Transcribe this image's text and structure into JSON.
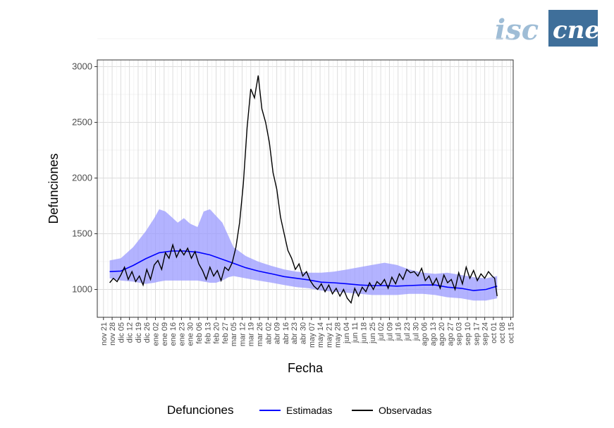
{
  "logo": {
    "left_text": "isc",
    "right_text": "cne",
    "accent_color": "#3f6f9a",
    "light_color": "#9fbdd6"
  },
  "chart_data": {
    "type": "line",
    "title": "",
    "xlabel": "Fecha",
    "ylabel": "Defunciones",
    "ylim": [
      750,
      3060
    ],
    "y_ticks": [
      1000,
      1500,
      2000,
      2500,
      3000
    ],
    "x_range": [
      "2019-11-16",
      "2020-10-17"
    ],
    "x_tick_dates": [
      "2019-11-21",
      "2019-11-28",
      "2019-12-05",
      "2019-12-12",
      "2019-12-19",
      "2019-12-26",
      "2020-01-02",
      "2020-01-09",
      "2020-01-16",
      "2020-01-23",
      "2020-01-30",
      "2020-02-06",
      "2020-02-13",
      "2020-02-20",
      "2020-02-27",
      "2020-03-05",
      "2020-03-12",
      "2020-03-19",
      "2020-03-26",
      "2020-04-02",
      "2020-04-09",
      "2020-04-16",
      "2020-04-23",
      "2020-04-30",
      "2020-05-07",
      "2020-05-14",
      "2020-05-21",
      "2020-05-28",
      "2020-06-04",
      "2020-06-11",
      "2020-06-18",
      "2020-06-25",
      "2020-07-02",
      "2020-07-09",
      "2020-07-16",
      "2020-07-23",
      "2020-07-30",
      "2020-08-06",
      "2020-08-13",
      "2020-08-20",
      "2020-08-27",
      "2020-09-03",
      "2020-09-10",
      "2020-09-17",
      "2020-09-24",
      "2020-10-01",
      "2020-10-08",
      "2020-10-15"
    ],
    "x_tick_labels": [
      "nov 21",
      "nov 28",
      "dic 05",
      "dic 12",
      "dic 19",
      "dic 26",
      "ene 02",
      "ene 09",
      "ene 16",
      "ene 23",
      "ene 30",
      "feb 06",
      "feb 13",
      "feb 20",
      "feb 27",
      "mar 05",
      "mar 12",
      "mar 19",
      "mar 26",
      "abr 02",
      "abr 09",
      "abr 16",
      "abr 23",
      "abr 30",
      "may 07",
      "may 14",
      "may 21",
      "may 28",
      "jun 04",
      "jun 11",
      "jun 18",
      "jun 25",
      "jul 02",
      "jul 09",
      "jul 16",
      "jul 23",
      "jul 30",
      "ago 06",
      "ago 13",
      "ago 20",
      "ago 27",
      "sep 03",
      "sep 10",
      "sep 17",
      "sep 24",
      "oct 01",
      "oct 08",
      "oct 15"
    ],
    "grid": true,
    "legend": {
      "title": "Defunciones",
      "position": "bottom"
    },
    "series": [
      {
        "name": "Estimadas",
        "color": "#0000ff",
        "x": [
          "2019-11-26",
          "2019-12-05",
          "2019-12-15",
          "2019-12-25",
          "2020-01-05",
          "2020-01-15",
          "2020-01-25",
          "2020-02-05",
          "2020-02-15",
          "2020-02-25",
          "2020-03-05",
          "2020-03-15",
          "2020-03-25",
          "2020-04-05",
          "2020-04-15",
          "2020-04-25",
          "2020-05-05",
          "2020-05-15",
          "2020-05-25",
          "2020-06-05",
          "2020-06-15",
          "2020-06-25",
          "2020-07-05",
          "2020-07-15",
          "2020-07-25",
          "2020-08-05",
          "2020-08-15",
          "2020-08-25",
          "2020-09-05",
          "2020-09-15",
          "2020-09-25",
          "2020-10-04"
        ],
        "values": [
          1160,
          1165,
          1215,
          1275,
          1330,
          1345,
          1345,
          1335,
          1310,
          1270,
          1235,
          1195,
          1165,
          1140,
          1115,
          1100,
          1085,
          1065,
          1060,
          1050,
          1040,
          1035,
          1035,
          1030,
          1035,
          1040,
          1040,
          1020,
          1010,
          990,
          1000,
          1030
        ]
      },
      {
        "name": "Observadas",
        "color": "#000000",
        "x": [
          "2019-11-26",
          "2019-11-29",
          "2019-12-02",
          "2019-12-05",
          "2019-12-08",
          "2019-12-11",
          "2019-12-14",
          "2019-12-17",
          "2019-12-20",
          "2019-12-23",
          "2019-12-26",
          "2019-12-29",
          "2020-01-01",
          "2020-01-04",
          "2020-01-07",
          "2020-01-10",
          "2020-01-13",
          "2020-01-16",
          "2020-01-19",
          "2020-01-22",
          "2020-01-25",
          "2020-01-28",
          "2020-01-31",
          "2020-02-03",
          "2020-02-06",
          "2020-02-09",
          "2020-02-12",
          "2020-02-15",
          "2020-02-18",
          "2020-02-21",
          "2020-02-24",
          "2020-02-27",
          "2020-03-01",
          "2020-03-04",
          "2020-03-07",
          "2020-03-10",
          "2020-03-13",
          "2020-03-16",
          "2020-03-19",
          "2020-03-22",
          "2020-03-25",
          "2020-03-28",
          "2020-03-31",
          "2020-04-03",
          "2020-04-06",
          "2020-04-09",
          "2020-04-12",
          "2020-04-15",
          "2020-04-18",
          "2020-04-21",
          "2020-04-24",
          "2020-04-27",
          "2020-04-30",
          "2020-05-03",
          "2020-05-06",
          "2020-05-09",
          "2020-05-12",
          "2020-05-15",
          "2020-05-18",
          "2020-05-21",
          "2020-05-24",
          "2020-05-27",
          "2020-05-30",
          "2020-06-02",
          "2020-06-05",
          "2020-06-08",
          "2020-06-11",
          "2020-06-14",
          "2020-06-17",
          "2020-06-20",
          "2020-06-23",
          "2020-06-26",
          "2020-06-29",
          "2020-07-02",
          "2020-07-05",
          "2020-07-08",
          "2020-07-11",
          "2020-07-14",
          "2020-07-17",
          "2020-07-20",
          "2020-07-23",
          "2020-07-26",
          "2020-07-29",
          "2020-08-01",
          "2020-08-04",
          "2020-08-07",
          "2020-08-10",
          "2020-08-13",
          "2020-08-16",
          "2020-08-19",
          "2020-08-22",
          "2020-08-25",
          "2020-08-28",
          "2020-08-31",
          "2020-09-03",
          "2020-09-06",
          "2020-09-09",
          "2020-09-12",
          "2020-09-15",
          "2020-09-18",
          "2020-09-21",
          "2020-09-24",
          "2020-09-27",
          "2020-09-30",
          "2020-10-02",
          "2020-10-04"
        ],
        "values": [
          1060,
          1100,
          1070,
          1130,
          1200,
          1090,
          1160,
          1070,
          1120,
          1040,
          1180,
          1090,
          1220,
          1260,
          1180,
          1330,
          1280,
          1400,
          1290,
          1360,
          1310,
          1370,
          1280,
          1340,
          1230,
          1170,
          1090,
          1200,
          1120,
          1170,
          1080,
          1200,
          1170,
          1240,
          1380,
          1600,
          1950,
          2450,
          2800,
          2720,
          2920,
          2620,
          2500,
          2320,
          2050,
          1900,
          1650,
          1500,
          1350,
          1280,
          1180,
          1230,
          1120,
          1160,
          1080,
          1030,
          1000,
          1050,
          980,
          1040,
          960,
          1010,
          940,
          1000,
          920,
          880,
          1010,
          940,
          1020,
          980,
          1060,
          1000,
          1070,
          1040,
          1090,
          1010,
          1110,
          1050,
          1140,
          1090,
          1180,
          1150,
          1160,
          1120,
          1190,
          1080,
          1120,
          1040,
          1100,
          1010,
          1130,
          1060,
          1090,
          1000,
          1150,
          1050,
          1200,
          1100,
          1170,
          1080,
          1140,
          1100,
          1160,
          1120,
          1100,
          940
        ]
      }
    ],
    "band": {
      "name": "Estimadas",
      "color": "#9999ff",
      "x": [
        "2019-11-26",
        "2019-12-05",
        "2019-12-15",
        "2019-12-25",
        "2020-01-01",
        "2020-01-05",
        "2020-01-10",
        "2020-01-15",
        "2020-01-20",
        "2020-01-25",
        "2020-01-30",
        "2020-02-05",
        "2020-02-10",
        "2020-02-15",
        "2020-02-20",
        "2020-02-25",
        "2020-03-01",
        "2020-03-05",
        "2020-03-15",
        "2020-03-25",
        "2020-04-05",
        "2020-04-15",
        "2020-04-25",
        "2020-05-05",
        "2020-05-15",
        "2020-05-25",
        "2020-06-05",
        "2020-06-15",
        "2020-06-25",
        "2020-07-05",
        "2020-07-15",
        "2020-07-25",
        "2020-08-05",
        "2020-08-15",
        "2020-08-25",
        "2020-09-05",
        "2020-09-15",
        "2020-09-25",
        "2020-10-04"
      ],
      "lower": [
        1100,
        1080,
        1070,
        1050,
        1060,
        1070,
        1080,
        1080,
        1080,
        1080,
        1080,
        1080,
        1070,
        1060,
        1060,
        1080,
        1110,
        1120,
        1100,
        1080,
        1060,
        1040,
        1020,
        1010,
        990,
        980,
        970,
        960,
        950,
        950,
        950,
        960,
        960,
        950,
        930,
        920,
        900,
        900,
        920
      ],
      "upper": [
        1260,
        1280,
        1380,
        1520,
        1640,
        1720,
        1700,
        1650,
        1600,
        1640,
        1590,
        1560,
        1700,
        1720,
        1660,
        1600,
        1480,
        1380,
        1300,
        1250,
        1210,
        1180,
        1160,
        1150,
        1150,
        1160,
        1180,
        1200,
        1220,
        1240,
        1220,
        1180,
        1150,
        1140,
        1150,
        1130,
        1110,
        1100,
        1120
      ]
    }
  }
}
